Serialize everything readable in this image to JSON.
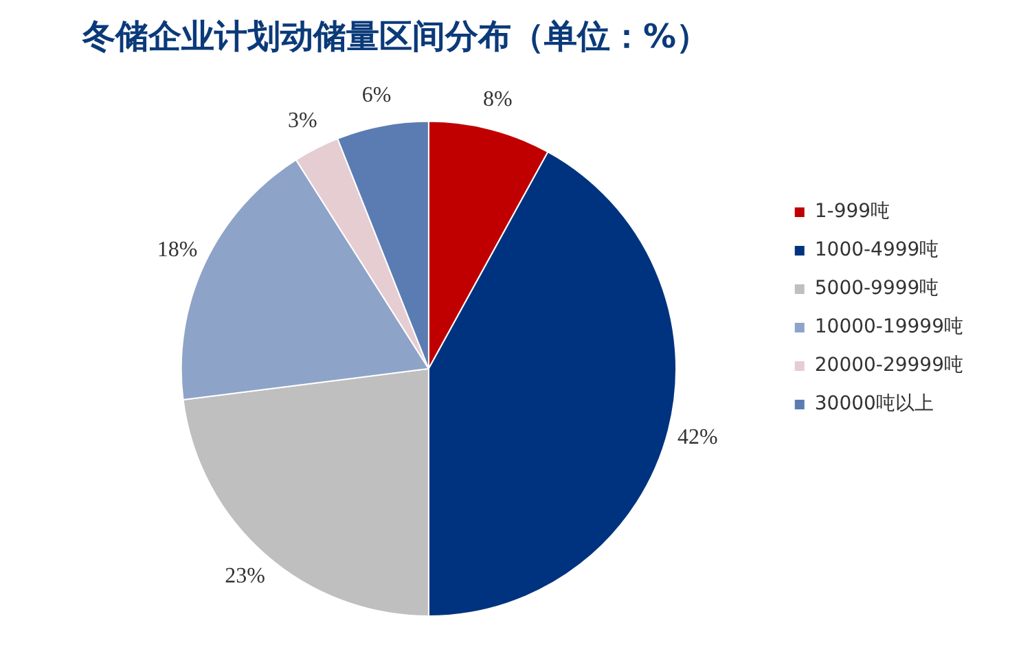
{
  "chart_data": {
    "type": "pie",
    "title": "冬储企业计划动储量区间分布（单位：%）",
    "categories": [
      "1-999吨",
      "1000-4999吨",
      "5000-9999吨",
      "10000-19999吨",
      "20000-29999吨",
      "30000吨以上"
    ],
    "values": [
      8,
      42,
      23,
      18,
      3,
      6
    ],
    "value_labels": [
      "8%",
      "42%",
      "23%",
      "18%",
      "3%",
      "6%"
    ],
    "colors": [
      "#c00000",
      "#00337f",
      "#bfbfbf",
      "#8ea3c8",
      "#e6cdd2",
      "#5b7cb3"
    ],
    "legend": "right"
  }
}
